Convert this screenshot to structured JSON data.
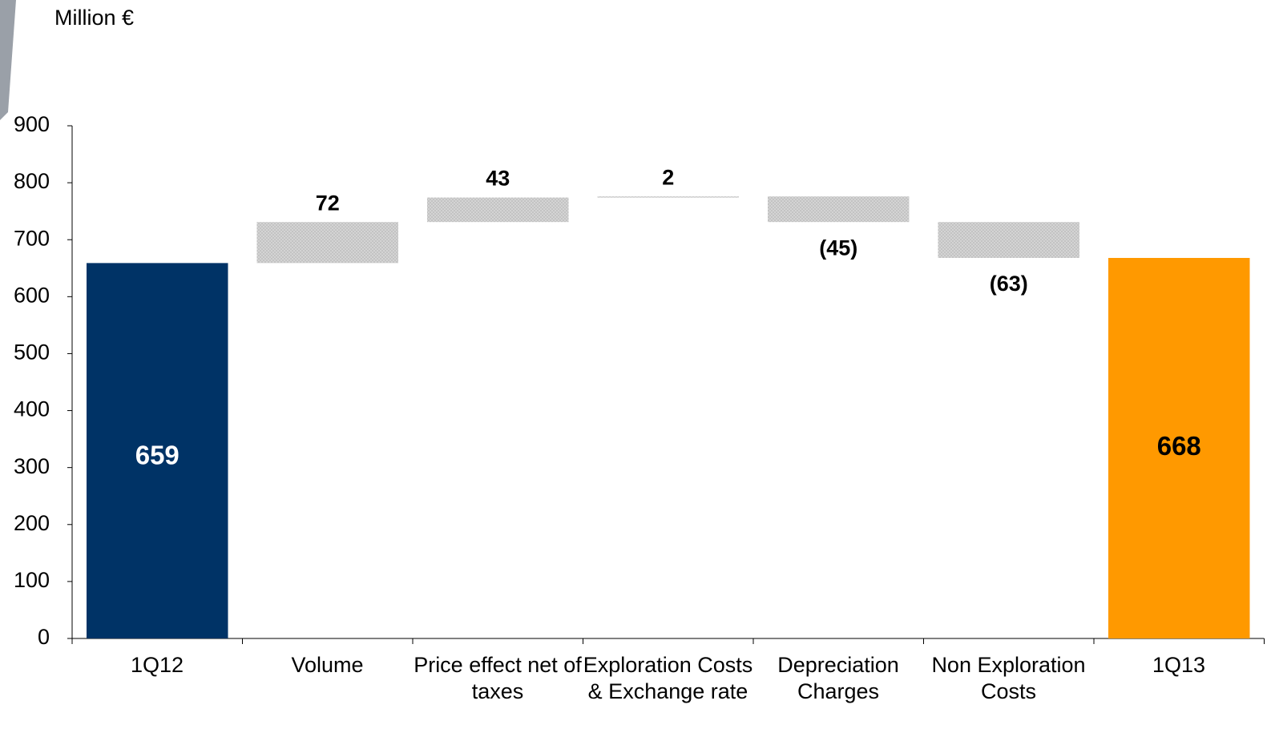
{
  "chart_data": {
    "type": "waterfall",
    "y_axis_label": "Million €",
    "categories": [
      "1Q12",
      "Volume",
      "Price effect net of taxes",
      "Exploration Costs & Exchange rate",
      "Depreciation Charges",
      "Non Exploration Costs",
      "1Q13"
    ],
    "values": [
      659,
      72,
      43,
      2,
      -45,
      -63,
      668
    ],
    "value_labels": [
      "659",
      "72",
      "43",
      "2",
      "(45)",
      "(63)",
      "668"
    ],
    "colors": [
      "#003366",
      "#cccccc",
      "#cccccc",
      "#cccccc",
      "#cccccc",
      "#cccccc",
      "#ff9900"
    ],
    "ylim": [
      0,
      900
    ],
    "yticks": [
      0,
      100,
      200,
      300,
      400,
      500,
      600,
      700,
      800,
      900
    ],
    "grid": false
  }
}
